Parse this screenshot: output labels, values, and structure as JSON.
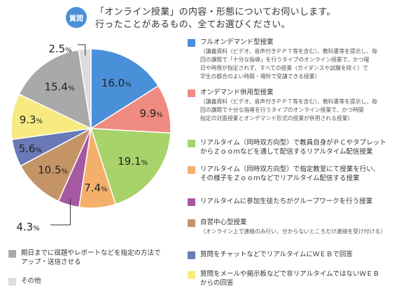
{
  "header": {
    "badge": "質問",
    "question_line1": "「オンライン授業」の内容・形態についてお伺いします。",
    "question_line2": "行ったことがあるもの、全てお選びください。"
  },
  "chart_data": {
    "type": "pie",
    "unit": "%",
    "slices": [
      {
        "label": "フルオンデマンド型授業",
        "value": 16.0,
        "display": "16.0%",
        "color": "#4a90d9"
      },
      {
        "label": "オンデマンド併用型授業",
        "value": 9.9,
        "display": "9.9%",
        "color": "#ef8b80"
      },
      {
        "label": "リアルタイム（同時双方向型）で教員自身がPCやタブレットからZoomなどを通して配信するリアルタイム配信授業",
        "value": 19.1,
        "display": "19.1%",
        "color": "#a8d26a"
      },
      {
        "label": "リアルタイム（同時双方向型）で指定教室にて授業を行い、その様子をZoomなどでリアルタイム配信する授業",
        "value": 7.4,
        "display": "7.4%",
        "color": "#f4b06a"
      },
      {
        "label": "リアルタイムに参加生徒たちがグループワークを行う授業",
        "value": 4.3,
        "display": "4.3%",
        "color": "#a659a0"
      },
      {
        "label": "自習中心型授業",
        "value": 10.5,
        "display": "10.5%",
        "color": "#c49467"
      },
      {
        "label": "質問をチャットなどでリアルタイムにWEBで回答",
        "value": 5.6,
        "display": "5.6%",
        "color": "#6a79b7"
      },
      {
        "label": "質問をメールや掲示板などで非リアルタイムではないWEBからの回答",
        "value": 9.3,
        "display": "9.3%",
        "color": "#f7ea80"
      },
      {
        "label": "期日までに宿題やレポートなどを指定の方法でアップ・送信させる",
        "value": 15.4,
        "display": "15.4%",
        "color": "#a9a9a9"
      },
      {
        "label": "その他",
        "value": 2.5,
        "display": "2.5%",
        "color": "#dcdcdc"
      }
    ]
  },
  "legend": {
    "items": [
      {
        "title": "フルオンデマンド型授業",
        "desc": [
          "（講義資料（ビデオ、音声付きＰＰＴ等を含む）、教科書等を提示し、毎",
          "回の課題で「十分な指導」を行うタイプのオンライン授業で、かつ曜",
          "日や時限が指定されず、すべての授業（ガイダンスや試験を除く）で",
          "学生の都合のよい時間・場所で受講できる授業）"
        ]
      },
      {
        "title": "オンデマンド併用型授業",
        "desc": [
          "（講義資料（ビデオ、音声付きＰＰＴ等を含む）、教科書等を提示し、毎",
          "回の課題で十分な指導を行うタイプのオンライン授業で、かつ時間",
          "指定の対面授業とオンデマンド形式の授業が併用される授業）"
        ]
      },
      {
        "title": [
          "リアルタイム（同時双方向型）で教員自身がＰＣやタブレット",
          "からＺｏｏｍなどを通して配信するリアルタイム配信授業"
        ],
        "desc": []
      },
      {
        "title": [
          "リアルタイム（同時双方向型）で指定教室にて授業を行い、",
          "その様子をＺｏｏｍなどでリアルタイム配信する授業"
        ],
        "desc": []
      },
      {
        "title": "リアルタイムに参加生徒たちがグループワークを行う授業",
        "desc": []
      },
      {
        "title": "自習中心型授業",
        "desc": [
          "（オンライン上で連絡のみ行い、分からないところだけ連絡を受け付ける）"
        ]
      },
      {
        "title": "質問をチャットなどでリアルタイムにＷＥＢで回答",
        "desc": []
      },
      {
        "title": [
          "質問をメールや掲示板などで非リアルタイムではないＷＥＢ",
          "からの回答"
        ],
        "desc": []
      }
    ],
    "bottom_items": [
      {
        "title": [
          "期日までに宿題やレポートなどを指定の方法で",
          "アップ・送信させる"
        ]
      },
      {
        "title": "その他"
      }
    ]
  }
}
